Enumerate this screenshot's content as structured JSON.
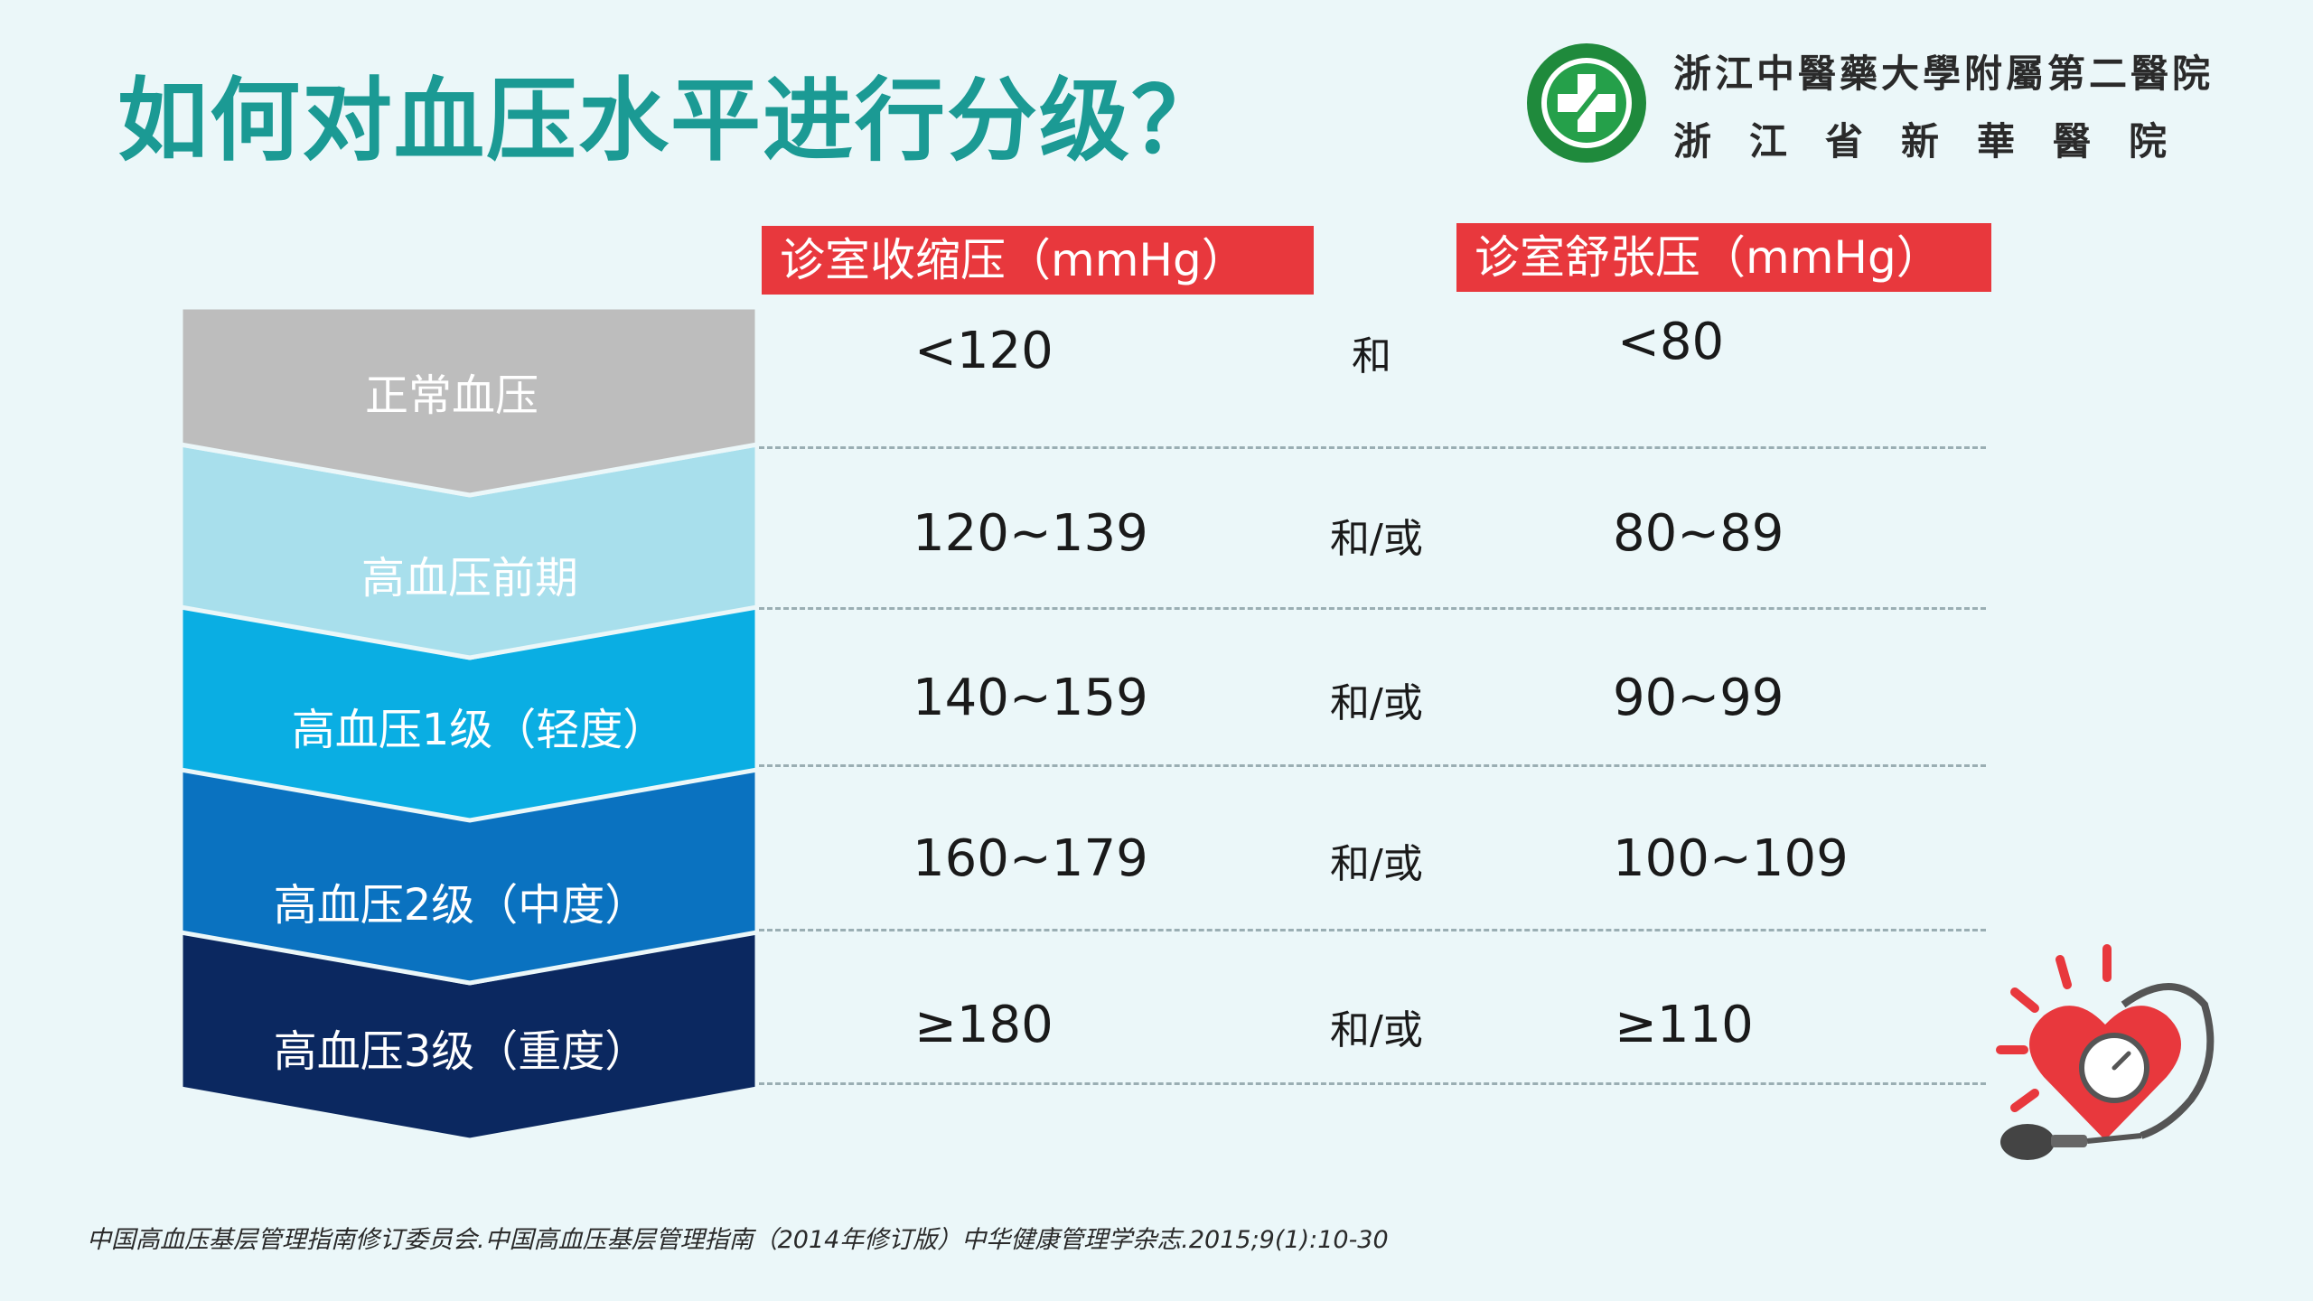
{
  "title": "如何对血压水平进行分级？",
  "hospital": {
    "name_line1": "浙江中醫藥大學附屬第二醫院",
    "name_line2": "浙江省新華醫院"
  },
  "headers": {
    "systolic": "诊室收缩压（mmHg）",
    "diastolic": "诊室舒张压（mmHg）"
  },
  "rows": [
    {
      "level": "正常血压",
      "systolic": "<120",
      "conj": "和",
      "diastolic": "<80",
      "color": "#bdbdbd"
    },
    {
      "level": "高血压前期",
      "systolic": "120~139",
      "conj": "和/或",
      "diastolic": "80~89",
      "color": "#a8dfec"
    },
    {
      "level": "高血压1级（轻度）",
      "systolic": "140~159",
      "conj": "和/或",
      "diastolic": "90~99",
      "color": "#0aaee3"
    },
    {
      "level": "高血压2级（中度）",
      "systolic": "160~179",
      "conj": "和/或",
      "diastolic": "100~109",
      "color": "#0a72c0"
    },
    {
      "level": "高血压3级（重度）",
      "systolic": "≥180",
      "conj": "和/或",
      "diastolic": "≥110",
      "color": "#0b2860"
    }
  ],
  "footnote": "中国高血压基层管理指南修订委员会.中国高血压基层管理指南（2014年修订版）中华健康管理学杂志.2015;9(1):10-30",
  "icons": {
    "logo": "hospital-emblem-icon",
    "bp": "blood-pressure-heart-icon"
  },
  "colors": {
    "title": "#1b9a94",
    "header_bg": "#e8383d",
    "background": "#ebf7f9"
  }
}
